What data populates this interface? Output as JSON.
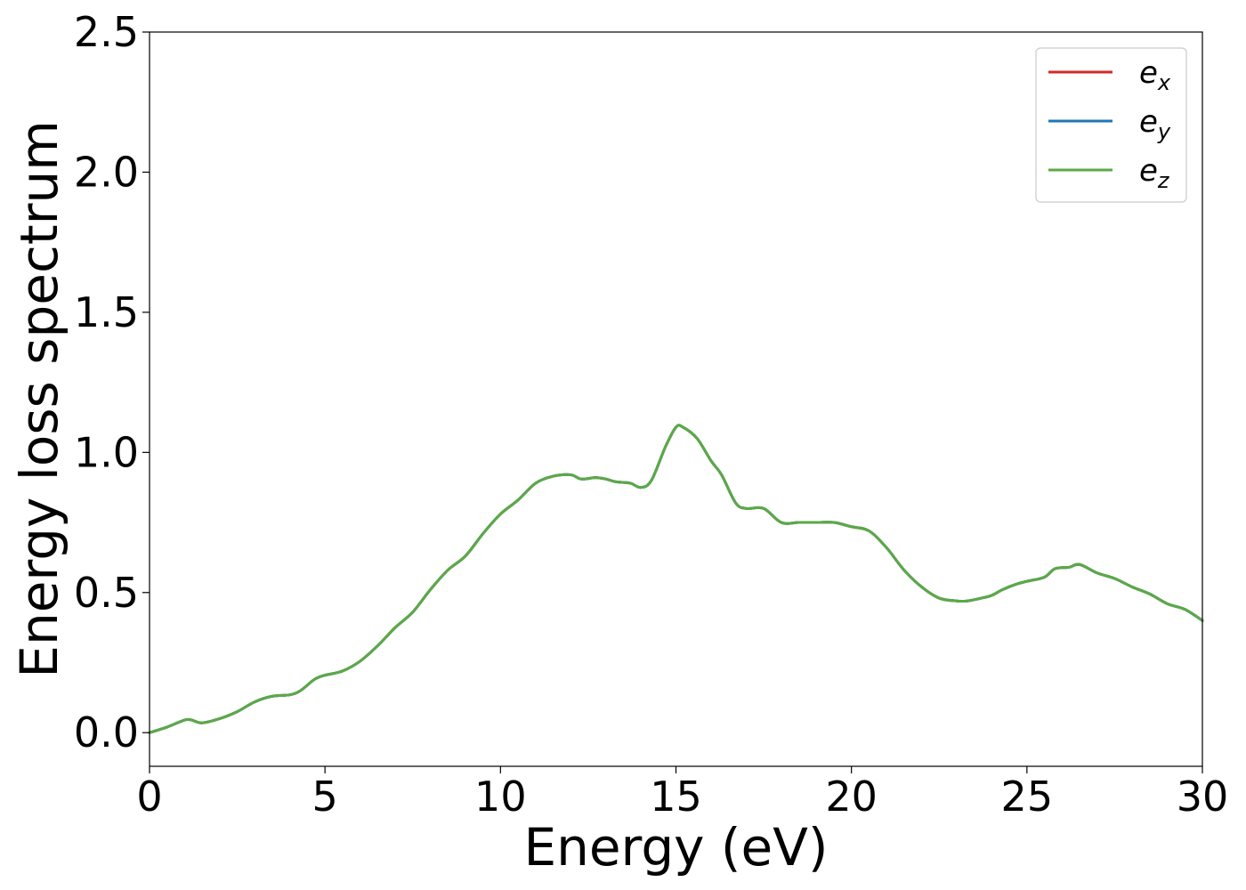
{
  "chart_data": {
    "type": "line",
    "xlabel": "Energy (eV)",
    "ylabel": "Energy loss spectrum",
    "xlim": [
      0,
      30
    ],
    "ylim": [
      -0.12,
      2.5
    ],
    "xticks": [
      0,
      5,
      10,
      15,
      20,
      25,
      30
    ],
    "xtick_labels": [
      "0",
      "5",
      "10",
      "15",
      "20",
      "25",
      "30"
    ],
    "yticks": [
      0.0,
      0.5,
      1.0,
      1.5,
      2.0,
      2.5
    ],
    "ytick_labels": [
      "0.0",
      "0.5",
      "1.0",
      "1.5",
      "2.0",
      "2.5"
    ],
    "grid": false,
    "legend_position": "top-right",
    "x": [
      0,
      0.5,
      1.0,
      1.2,
      1.5,
      2.0,
      2.5,
      3.0,
      3.5,
      4.0,
      4.3,
      4.7,
      5.0,
      5.5,
      6.0,
      6.5,
      7.0,
      7.5,
      8.0,
      8.5,
      9.0,
      9.5,
      10.0,
      10.5,
      11.0,
      11.5,
      12.0,
      12.3,
      12.7,
      13.0,
      13.3,
      13.7,
      14.0,
      14.3,
      14.7,
      15.0,
      15.2,
      15.6,
      16.0,
      16.3,
      16.7,
      17.0,
      17.5,
      18.0,
      18.5,
      19.0,
      19.5,
      20.0,
      20.5,
      21.0,
      21.5,
      22.0,
      22.5,
      23.0,
      23.3,
      23.7,
      24.0,
      24.3,
      24.7,
      25.0,
      25.5,
      25.8,
      26.2,
      26.5,
      27.0,
      27.5,
      28.0,
      28.5,
      29.0,
      29.5,
      30.0
    ],
    "series": [
      {
        "name": "e_x",
        "legend_base": "e",
        "legend_sub": "x",
        "color": "#d62728",
        "values": [
          0.0,
          0.02,
          0.045,
          0.045,
          0.035,
          0.05,
          0.075,
          0.11,
          0.13,
          0.135,
          0.15,
          0.19,
          0.205,
          0.22,
          0.255,
          0.31,
          0.375,
          0.43,
          0.51,
          0.58,
          0.63,
          0.71,
          0.78,
          0.83,
          0.89,
          0.915,
          0.92,
          0.905,
          0.91,
          0.905,
          0.895,
          0.89,
          0.875,
          0.9,
          1.02,
          1.09,
          1.09,
          1.05,
          0.97,
          0.92,
          0.82,
          0.8,
          0.8,
          0.75,
          0.75,
          0.75,
          0.75,
          0.735,
          0.72,
          0.66,
          0.58,
          0.52,
          0.48,
          0.47,
          0.47,
          0.48,
          0.49,
          0.51,
          0.53,
          0.54,
          0.555,
          0.585,
          0.59,
          0.6,
          0.57,
          0.55,
          0.52,
          0.495,
          0.46,
          0.44,
          0.4
        ]
      },
      {
        "name": "e_y",
        "legend_base": "e",
        "legend_sub": "y",
        "color": "#1f77b4",
        "values": [
          0.0,
          0.02,
          0.045,
          0.045,
          0.035,
          0.05,
          0.075,
          0.11,
          0.13,
          0.135,
          0.15,
          0.19,
          0.205,
          0.22,
          0.255,
          0.31,
          0.375,
          0.43,
          0.51,
          0.58,
          0.63,
          0.71,
          0.78,
          0.83,
          0.89,
          0.915,
          0.92,
          0.905,
          0.91,
          0.905,
          0.895,
          0.89,
          0.875,
          0.9,
          1.02,
          1.09,
          1.09,
          1.05,
          0.97,
          0.92,
          0.82,
          0.8,
          0.8,
          0.75,
          0.75,
          0.75,
          0.75,
          0.735,
          0.72,
          0.66,
          0.58,
          0.52,
          0.48,
          0.47,
          0.47,
          0.48,
          0.49,
          0.51,
          0.53,
          0.54,
          0.555,
          0.585,
          0.59,
          0.6,
          0.57,
          0.55,
          0.52,
          0.495,
          0.46,
          0.44,
          0.4
        ]
      },
      {
        "name": "e_z",
        "legend_base": "e",
        "legend_sub": "z",
        "color": "#5aaa46",
        "values": [
          0.0,
          0.02,
          0.045,
          0.045,
          0.035,
          0.05,
          0.075,
          0.11,
          0.13,
          0.135,
          0.15,
          0.19,
          0.205,
          0.22,
          0.255,
          0.31,
          0.375,
          0.43,
          0.51,
          0.58,
          0.63,
          0.71,
          0.78,
          0.83,
          0.89,
          0.915,
          0.92,
          0.905,
          0.91,
          0.905,
          0.895,
          0.89,
          0.875,
          0.9,
          1.02,
          1.09,
          1.09,
          1.05,
          0.97,
          0.92,
          0.82,
          0.8,
          0.8,
          0.75,
          0.75,
          0.75,
          0.75,
          0.735,
          0.72,
          0.66,
          0.58,
          0.52,
          0.48,
          0.47,
          0.47,
          0.48,
          0.49,
          0.51,
          0.53,
          0.54,
          0.555,
          0.585,
          0.59,
          0.6,
          0.57,
          0.55,
          0.52,
          0.495,
          0.46,
          0.44,
          0.4
        ]
      }
    ]
  }
}
